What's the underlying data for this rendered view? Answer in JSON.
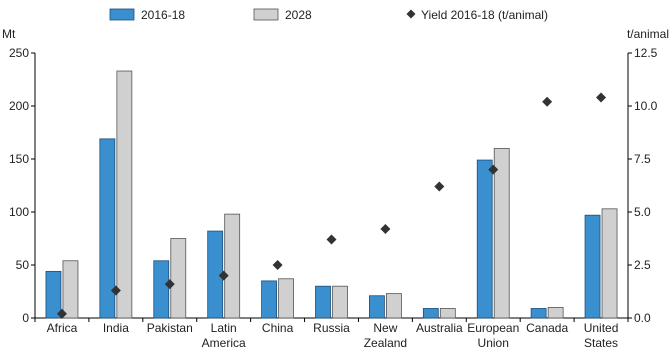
{
  "chart_data": {
    "type": "bar",
    "categories": [
      [
        "Africa"
      ],
      [
        "India"
      ],
      [
        "Pakistan"
      ],
      [
        "Latin",
        "America"
      ],
      [
        "China"
      ],
      [
        "Russia"
      ],
      [
        "New",
        "Zealand"
      ],
      [
        "Australia"
      ],
      [
        "European",
        "Union"
      ],
      [
        "Canada"
      ],
      [
        "United",
        "States"
      ]
    ],
    "series": [
      {
        "name": "2016-18",
        "type": "bar",
        "axis": "left",
        "values": [
          44,
          169,
          54,
          82,
          35,
          30,
          21,
          9,
          149,
          9,
          97
        ]
      },
      {
        "name": "2028",
        "type": "bar",
        "axis": "left",
        "values": [
          54,
          233,
          75,
          98,
          37,
          30,
          23,
          9,
          160,
          10,
          103
        ]
      },
      {
        "name": "Yield 2016-18 (t/animal)",
        "type": "scatter",
        "axis": "right",
        "values": [
          0.2,
          1.3,
          1.6,
          2.0,
          2.5,
          3.7,
          4.2,
          6.2,
          7.0,
          10.2,
          10.4
        ]
      }
    ],
    "yleft": {
      "label": "Mt",
      "lim": [
        0,
        250
      ],
      "ticks": [
        0,
        50,
        100,
        150,
        200,
        250
      ]
    },
    "yright": {
      "label": "t/animal",
      "lim": [
        0,
        12.5
      ],
      "ticks": [
        "0.0",
        "2.5",
        "5.0",
        "7.5",
        "10.0",
        "12.5"
      ]
    },
    "legend_position": "top",
    "colors": {
      "bar1_fill": "#3a8fcf",
      "bar1_stroke": "#1b4f7a",
      "bar2_fill": "#d0d0d0",
      "bar2_stroke": "#555555",
      "marker": "#333333",
      "axis": "#000000"
    }
  }
}
